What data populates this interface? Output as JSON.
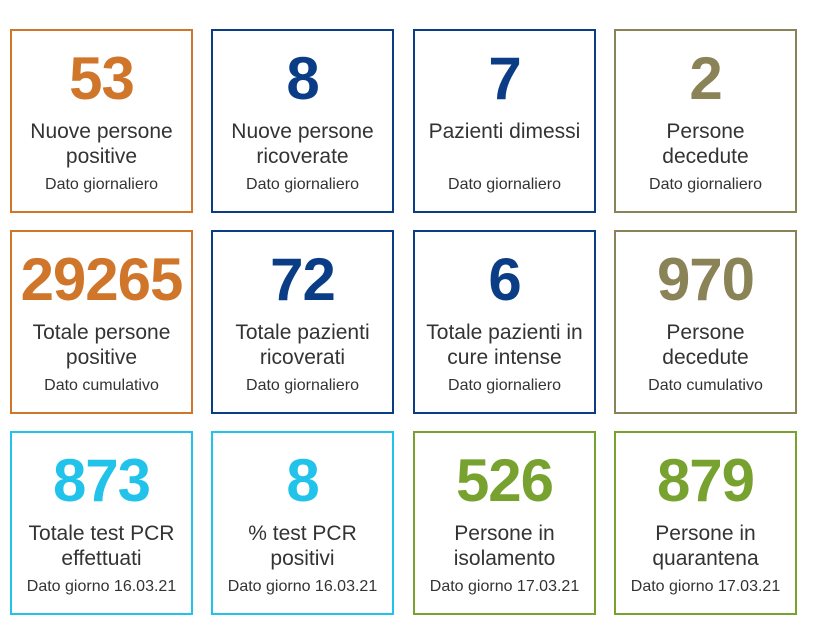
{
  "cards": [
    {
      "value": "53",
      "label": "Nuove persone\npositive",
      "sub": "Dato giornaliero",
      "color": "#d0762b"
    },
    {
      "value": "8",
      "label": "Nuove persone\nricoverate",
      "sub": "Dato giornaliero",
      "color": "#0b3d86"
    },
    {
      "value": "7",
      "label": "Pazienti dimessi",
      "sub": "Dato giornaliero",
      "color": "#0b3d86"
    },
    {
      "value": "2",
      "label": "Persone\ndecedute",
      "sub": "Dato giornaliero",
      "color": "#8a8358"
    },
    {
      "value": "29265",
      "label": "Totale persone\npositive",
      "sub": "Dato cumulativo",
      "color": "#d0762b"
    },
    {
      "value": "72",
      "label": "Totale pazienti\nricoverati",
      "sub": "Dato giornaliero",
      "color": "#0b3d86"
    },
    {
      "value": "6",
      "label": "Totale pazienti in\ncure intense",
      "sub": "Dato giornaliero",
      "color": "#0b3d86"
    },
    {
      "value": "970",
      "label": "Persone\ndecedute",
      "sub": "Dato cumulativo",
      "color": "#8a8358"
    },
    {
      "value": "873",
      "label": "Totale test PCR\neffettuati",
      "sub": "Dato giorno 16.03.21",
      "color": "#22c3ea"
    },
    {
      "value": "8",
      "label": "% test PCR\npositivi",
      "sub": "Dato giorno 16.03.21",
      "color": "#22c3ea"
    },
    {
      "value": "526",
      "label": "Persone in\nisolamento",
      "sub": "Dato giorno 17.03.21",
      "color": "#78a22f"
    },
    {
      "value": "879",
      "label": "Persone in\nquarantena",
      "sub": "Dato giorno 17.03.21",
      "color": "#78a22f"
    }
  ]
}
